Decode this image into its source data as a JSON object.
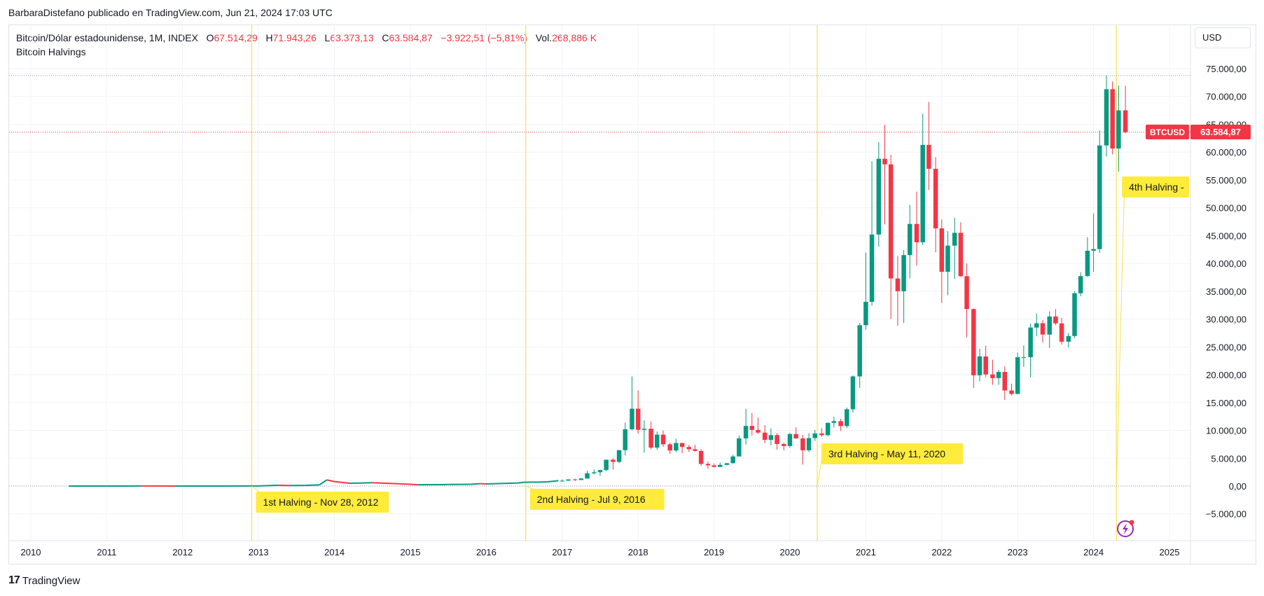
{
  "header": {
    "publisher": "BarbaraDistefano publicado en TradingView.com, Jun 21, 2024 17:03 UTC"
  },
  "legend": {
    "instrument": "Bitcoin/Dólar estadounidense, 1M, INDEX",
    "o_label": "O",
    "o_value": "67.514,29",
    "h_label": "H",
    "h_value": "71.943,26",
    "l_label": "L",
    "l_value": "63.373,13",
    "c_label": "C",
    "c_value": "63.584,87",
    "change": "−3.922,51 (−5,81%)",
    "vol_label": "Vol.",
    "vol_value": "268,886 K",
    "indicator": "Bitcoin Halvings"
  },
  "currency_button": "USD",
  "price_tag": {
    "symbol": "BTCUSD",
    "value": "63.584,87"
  },
  "footer": {
    "brand": "TradingView",
    "brand_mark": "17"
  },
  "colors": {
    "up": "#089981",
    "down": "#f23645",
    "halving_line": "#f7e24a",
    "halving_label": "#ffeb3b",
    "grid": "#f0f3fa",
    "axis_text": "#131722"
  },
  "chart_data": {
    "type": "candlestick",
    "timeframe": "1M",
    "ylim": [
      -10000,
      80000
    ],
    "xlim": [
      2009.85,
      2025.35
    ],
    "y_ticks": [
      {
        "v": 75000,
        "label": "75.000,00"
      },
      {
        "v": 70000,
        "label": "70.000,00"
      },
      {
        "v": 65000,
        "label": "65.000,00"
      },
      {
        "v": 60000,
        "label": "60.000,00"
      },
      {
        "v": 55000,
        "label": "55.000,00"
      },
      {
        "v": 50000,
        "label": "50.000,00"
      },
      {
        "v": 45000,
        "label": "45.000,00"
      },
      {
        "v": 40000,
        "label": "40.000,00"
      },
      {
        "v": 35000,
        "label": "35.000,00"
      },
      {
        "v": 30000,
        "label": "30.000,00"
      },
      {
        "v": 25000,
        "label": "25.000,00"
      },
      {
        "v": 20000,
        "label": "20.000,00"
      },
      {
        "v": 15000,
        "label": "15.000,00"
      },
      {
        "v": 10000,
        "label": "10.000,00"
      },
      {
        "v": 5000,
        "label": "5.000,00"
      },
      {
        "v": 0,
        "label": "0,00"
      },
      {
        "v": -5000,
        "label": "−5.000,00"
      }
    ],
    "x_ticks": [
      "2010",
      "2011",
      "2012",
      "2013",
      "2014",
      "2015",
      "2016",
      "2017",
      "2018",
      "2019",
      "2020",
      "2021",
      "2022",
      "2023",
      "2024",
      "2025"
    ],
    "halvings": [
      {
        "t": 2012.91,
        "label": "1st Halving - Nov 28, 2012"
      },
      {
        "t": 2016.52,
        "label": "2nd Halving - Jul 9, 2016"
      },
      {
        "t": 2020.36,
        "label": "3rd Halving - May 11, 2020"
      },
      {
        "t": 2024.3,
        "label": "4th Halving -"
      }
    ],
    "reference_lines": [
      73750,
      63585
    ],
    "candles": [
      {
        "t": 2017.0,
        "o": 960,
        "h": 1190,
        "l": 750,
        "c": 970
      },
      {
        "t": 2017.08,
        "o": 970,
        "h": 1210,
        "l": 930,
        "c": 1190
      },
      {
        "t": 2017.17,
        "o": 1190,
        "h": 1350,
        "l": 890,
        "c": 1080
      },
      {
        "t": 2017.25,
        "o": 1080,
        "h": 1450,
        "l": 1080,
        "c": 1350
      },
      {
        "t": 2017.33,
        "o": 1350,
        "h": 2760,
        "l": 1350,
        "c": 2300
      },
      {
        "t": 2017.42,
        "o": 2300,
        "h": 2980,
        "l": 2080,
        "c": 2480
      },
      {
        "t": 2017.5,
        "o": 2480,
        "h": 2920,
        "l": 1830,
        "c": 2870
      },
      {
        "t": 2017.58,
        "o": 2870,
        "h": 4730,
        "l": 2680,
        "c": 4730
      },
      {
        "t": 2017.67,
        "o": 4730,
        "h": 4980,
        "l": 2970,
        "c": 4340
      },
      {
        "t": 2017.75,
        "o": 4340,
        "h": 6470,
        "l": 4110,
        "c": 6450
      },
      {
        "t": 2017.83,
        "o": 6450,
        "h": 11400,
        "l": 5500,
        "c": 10200
      },
      {
        "t": 2017.92,
        "o": 10200,
        "h": 19700,
        "l": 10000,
        "c": 13900
      },
      {
        "t": 2018.0,
        "o": 13900,
        "h": 17200,
        "l": 9400,
        "c": 10100
      },
      {
        "t": 2018.08,
        "o": 10100,
        "h": 11800,
        "l": 6000,
        "c": 10300
      },
      {
        "t": 2018.17,
        "o": 10300,
        "h": 11600,
        "l": 6600,
        "c": 6900
      },
      {
        "t": 2018.25,
        "o": 6900,
        "h": 9800,
        "l": 6500,
        "c": 9240
      },
      {
        "t": 2018.33,
        "o": 9240,
        "h": 9990,
        "l": 7060,
        "c": 7500
      },
      {
        "t": 2018.42,
        "o": 7500,
        "h": 7780,
        "l": 5780,
        "c": 6390
      },
      {
        "t": 2018.5,
        "o": 6390,
        "h": 8500,
        "l": 6100,
        "c": 7730
      },
      {
        "t": 2018.58,
        "o": 7730,
        "h": 7760,
        "l": 5880,
        "c": 7020
      },
      {
        "t": 2018.67,
        "o": 7020,
        "h": 7410,
        "l": 6100,
        "c": 6620
      },
      {
        "t": 2018.75,
        "o": 6620,
        "h": 7400,
        "l": 6200,
        "c": 6310
      },
      {
        "t": 2018.83,
        "o": 6310,
        "h": 6620,
        "l": 3650,
        "c": 3980
      },
      {
        "t": 2018.92,
        "o": 3980,
        "h": 4390,
        "l": 3120,
        "c": 3710
      },
      {
        "t": 2019.0,
        "o": 3710,
        "h": 4070,
        "l": 3330,
        "c": 3440
      },
      {
        "t": 2019.08,
        "o": 3440,
        "h": 4210,
        "l": 3390,
        "c": 3810
      },
      {
        "t": 2019.17,
        "o": 3810,
        "h": 4140,
        "l": 3680,
        "c": 4100
      },
      {
        "t": 2019.25,
        "o": 4100,
        "h": 5640,
        "l": 4080,
        "c": 5320
      },
      {
        "t": 2019.33,
        "o": 5320,
        "h": 9090,
        "l": 5330,
        "c": 8560
      },
      {
        "t": 2019.42,
        "o": 8560,
        "h": 13880,
        "l": 7450,
        "c": 10800
      },
      {
        "t": 2019.5,
        "o": 10800,
        "h": 13130,
        "l": 9080,
        "c": 10080
      },
      {
        "t": 2019.58,
        "o": 10080,
        "h": 12320,
        "l": 9360,
        "c": 9600
      },
      {
        "t": 2019.67,
        "o": 9600,
        "h": 10950,
        "l": 7720,
        "c": 8290
      },
      {
        "t": 2019.75,
        "o": 8290,
        "h": 10370,
        "l": 7300,
        "c": 9150
      },
      {
        "t": 2019.83,
        "o": 9150,
        "h": 9520,
        "l": 6520,
        "c": 7560
      },
      {
        "t": 2019.92,
        "o": 7560,
        "h": 7740,
        "l": 6420,
        "c": 7190
      },
      {
        "t": 2020.0,
        "o": 7190,
        "h": 9580,
        "l": 6860,
        "c": 9350
      },
      {
        "t": 2020.08,
        "o": 9350,
        "h": 10520,
        "l": 8470,
        "c": 8560
      },
      {
        "t": 2020.17,
        "o": 8560,
        "h": 9190,
        "l": 3850,
        "c": 6420
      },
      {
        "t": 2020.25,
        "o": 6420,
        "h": 9470,
        "l": 6150,
        "c": 8620
      },
      {
        "t": 2020.33,
        "o": 8620,
        "h": 10070,
        "l": 8110,
        "c": 9450
      },
      {
        "t": 2020.42,
        "o": 9450,
        "h": 10390,
        "l": 8900,
        "c": 9140
      },
      {
        "t": 2020.5,
        "o": 9140,
        "h": 11440,
        "l": 8970,
        "c": 11350
      },
      {
        "t": 2020.58,
        "o": 11350,
        "h": 12470,
        "l": 10530,
        "c": 11660
      },
      {
        "t": 2020.67,
        "o": 11660,
        "h": 12090,
        "l": 9890,
        "c": 10780
      },
      {
        "t": 2020.75,
        "o": 10780,
        "h": 14100,
        "l": 10380,
        "c": 13800
      },
      {
        "t": 2020.83,
        "o": 13800,
        "h": 19860,
        "l": 13220,
        "c": 19700
      },
      {
        "t": 2020.92,
        "o": 19700,
        "h": 29300,
        "l": 17600,
        "c": 28900
      },
      {
        "t": 2021.0,
        "o": 28900,
        "h": 41950,
        "l": 28100,
        "c": 33100
      },
      {
        "t": 2021.08,
        "o": 33100,
        "h": 58350,
        "l": 32400,
        "c": 45200
      },
      {
        "t": 2021.17,
        "o": 45200,
        "h": 61780,
        "l": 43000,
        "c": 58800
      },
      {
        "t": 2021.25,
        "o": 58800,
        "h": 64900,
        "l": 47000,
        "c": 57800
      },
      {
        "t": 2021.33,
        "o": 57800,
        "h": 59500,
        "l": 30000,
        "c": 37300
      },
      {
        "t": 2021.42,
        "o": 37300,
        "h": 41300,
        "l": 28800,
        "c": 35000
      },
      {
        "t": 2021.5,
        "o": 35000,
        "h": 42400,
        "l": 29300,
        "c": 41500
      },
      {
        "t": 2021.58,
        "o": 41500,
        "h": 50500,
        "l": 37300,
        "c": 47100
      },
      {
        "t": 2021.67,
        "o": 47100,
        "h": 52900,
        "l": 39600,
        "c": 43800
      },
      {
        "t": 2021.75,
        "o": 43800,
        "h": 66900,
        "l": 43300,
        "c": 61300
      },
      {
        "t": 2021.83,
        "o": 61300,
        "h": 69000,
        "l": 53200,
        "c": 57000
      },
      {
        "t": 2021.92,
        "o": 57000,
        "h": 59100,
        "l": 42000,
        "c": 46300
      },
      {
        "t": 2022.0,
        "o": 46300,
        "h": 47900,
        "l": 32900,
        "c": 38500
      },
      {
        "t": 2022.08,
        "o": 38500,
        "h": 45800,
        "l": 34300,
        "c": 43200
      },
      {
        "t": 2022.17,
        "o": 43200,
        "h": 48200,
        "l": 37200,
        "c": 45500
      },
      {
        "t": 2022.25,
        "o": 45500,
        "h": 47400,
        "l": 37600,
        "c": 37700
      },
      {
        "t": 2022.33,
        "o": 37700,
        "h": 40000,
        "l": 26700,
        "c": 31800
      },
      {
        "t": 2022.42,
        "o": 31800,
        "h": 31900,
        "l": 17600,
        "c": 19900
      },
      {
        "t": 2022.5,
        "o": 19900,
        "h": 24700,
        "l": 18800,
        "c": 23300
      },
      {
        "t": 2022.58,
        "o": 23300,
        "h": 25200,
        "l": 19600,
        "c": 20050
      },
      {
        "t": 2022.67,
        "o": 20050,
        "h": 22700,
        "l": 18200,
        "c": 19400
      },
      {
        "t": 2022.75,
        "o": 19400,
        "h": 20900,
        "l": 18200,
        "c": 20500
      },
      {
        "t": 2022.83,
        "o": 20500,
        "h": 21500,
        "l": 15500,
        "c": 17170
      },
      {
        "t": 2022.92,
        "o": 17170,
        "h": 18400,
        "l": 16300,
        "c": 16550
      },
      {
        "t": 2023.0,
        "o": 16550,
        "h": 23960,
        "l": 16500,
        "c": 23140
      },
      {
        "t": 2023.08,
        "o": 23140,
        "h": 25250,
        "l": 21400,
        "c": 23150
      },
      {
        "t": 2023.17,
        "o": 23150,
        "h": 29200,
        "l": 19500,
        "c": 28480
      },
      {
        "t": 2023.25,
        "o": 28480,
        "h": 31000,
        "l": 26900,
        "c": 29250
      },
      {
        "t": 2023.33,
        "o": 29250,
        "h": 29800,
        "l": 25800,
        "c": 27220
      },
      {
        "t": 2023.42,
        "o": 27220,
        "h": 31400,
        "l": 24800,
        "c": 30470
      },
      {
        "t": 2023.5,
        "o": 30470,
        "h": 31800,
        "l": 28900,
        "c": 29230
      },
      {
        "t": 2023.58,
        "o": 29230,
        "h": 30200,
        "l": 25400,
        "c": 25940
      },
      {
        "t": 2023.67,
        "o": 25940,
        "h": 27500,
        "l": 24900,
        "c": 26960
      },
      {
        "t": 2023.75,
        "o": 26960,
        "h": 35000,
        "l": 26600,
        "c": 34640
      },
      {
        "t": 2023.83,
        "o": 34640,
        "h": 38400,
        "l": 34100,
        "c": 37720
      },
      {
        "t": 2023.92,
        "o": 37720,
        "h": 44700,
        "l": 37600,
        "c": 42280
      },
      {
        "t": 2024.0,
        "o": 42280,
        "h": 48970,
        "l": 38500,
        "c": 42580
      },
      {
        "t": 2024.08,
        "o": 42580,
        "h": 63900,
        "l": 41900,
        "c": 61200
      },
      {
        "t": 2024.17,
        "o": 61200,
        "h": 73750,
        "l": 59200,
        "c": 71300
      },
      {
        "t": 2024.25,
        "o": 71300,
        "h": 72700,
        "l": 59600,
        "c": 60650
      },
      {
        "t": 2024.33,
        "o": 60650,
        "h": 71950,
        "l": 56500,
        "c": 67500
      },
      {
        "t": 2024.42,
        "o": 67500,
        "h": 71950,
        "l": 63370,
        "c": 63585
      }
    ],
    "pre2017_series": [
      [
        2010.5,
        0.1
      ],
      [
        2011.0,
        0.3
      ],
      [
        2011.3,
        1
      ],
      [
        2011.45,
        15
      ],
      [
        2011.6,
        10
      ],
      [
        2011.9,
        4
      ],
      [
        2012.0,
        5
      ],
      [
        2012.5,
        7
      ],
      [
        2012.9,
        12
      ],
      [
        2013.0,
        13
      ],
      [
        2013.25,
        140
      ],
      [
        2013.4,
        100
      ],
      [
        2013.6,
        110
      ],
      [
        2013.8,
        200
      ],
      [
        2013.9,
        1100
      ],
      [
        2014.0,
        800
      ],
      [
        2014.2,
        500
      ],
      [
        2014.5,
        600
      ],
      [
        2014.9,
        370
      ],
      [
        2015.0,
        320
      ],
      [
        2015.1,
        230
      ],
      [
        2015.5,
        280
      ],
      [
        2015.8,
        320
      ],
      [
        2015.92,
        430
      ],
      [
        2016.0,
        380
      ],
      [
        2016.4,
        530
      ],
      [
        2016.5,
        670
      ],
      [
        2016.8,
        740
      ],
      [
        2016.95,
        960
      ]
    ]
  }
}
